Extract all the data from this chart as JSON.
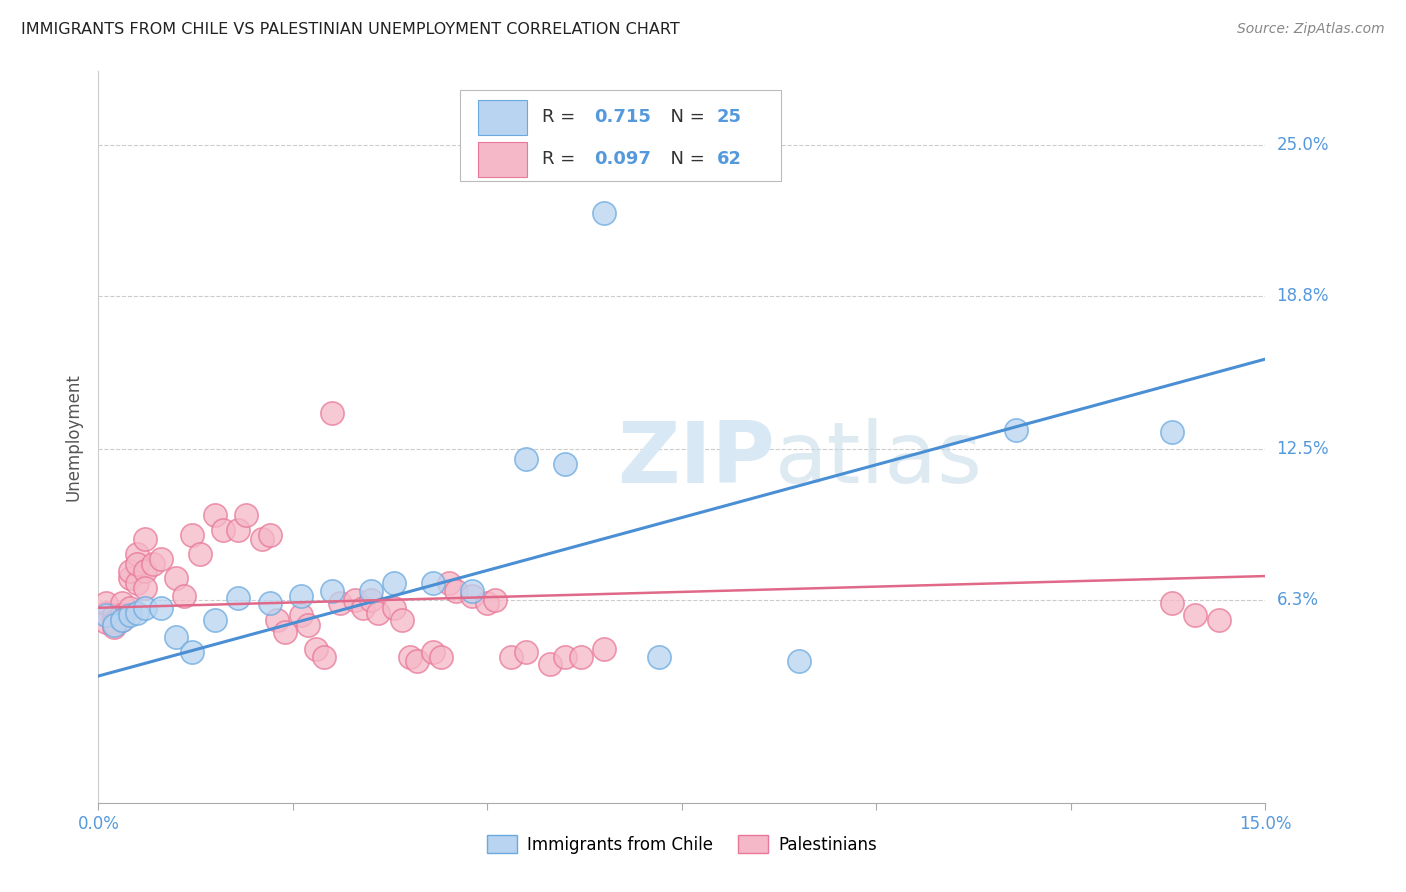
{
  "title": "IMMIGRANTS FROM CHILE VS PALESTINIAN UNEMPLOYMENT CORRELATION CHART",
  "source": "Source: ZipAtlas.com",
  "ylabel": "Unemployment",
  "xlim": [
    0.0,
    0.15
  ],
  "ylim": [
    -0.02,
    0.28
  ],
  "ytick_positions": [
    0.063,
    0.125,
    0.188,
    0.25
  ],
  "ytick_labels": [
    "6.3%",
    "12.5%",
    "18.8%",
    "25.0%"
  ],
  "xtick_positions": [
    0.0,
    0.025,
    0.05,
    0.075,
    0.1,
    0.125,
    0.15
  ],
  "chile_R": "0.715",
  "chile_N": "25",
  "palestinians_R": "0.097",
  "palestinians_N": "62",
  "chile_color": "#b8d4f0",
  "chile_edge_color": "#6aaae0",
  "chile_line_color": "#4a8fd4",
  "palestinians_color": "#f5b8c8",
  "palestinians_edge_color": "#e87898",
  "palestinians_line_color": "#e06888",
  "label_color": "#5599dd",
  "watermark_color": "#d8e8f5",
  "chile_points": [
    [
      0.001,
      0.057
    ],
    [
      0.002,
      0.053
    ],
    [
      0.003,
      0.055
    ],
    [
      0.004,
      0.057
    ],
    [
      0.005,
      0.058
    ],
    [
      0.006,
      0.06
    ],
    [
      0.008,
      0.06
    ],
    [
      0.01,
      0.048
    ],
    [
      0.012,
      0.042
    ],
    [
      0.015,
      0.055
    ],
    [
      0.018,
      0.064
    ],
    [
      0.022,
      0.062
    ],
    [
      0.026,
      0.065
    ],
    [
      0.03,
      0.067
    ],
    [
      0.035,
      0.067
    ],
    [
      0.038,
      0.07
    ],
    [
      0.043,
      0.07
    ],
    [
      0.048,
      0.067
    ],
    [
      0.055,
      0.121
    ],
    [
      0.06,
      0.119
    ],
    [
      0.065,
      0.222
    ],
    [
      0.072,
      0.04
    ],
    [
      0.09,
      0.038
    ],
    [
      0.118,
      0.133
    ],
    [
      0.138,
      0.132
    ]
  ],
  "chile_line": [
    [
      0.0,
      0.032
    ],
    [
      0.15,
      0.162
    ]
  ],
  "palestinians_points": [
    [
      0.001,
      0.058
    ],
    [
      0.001,
      0.054
    ],
    [
      0.001,
      0.062
    ],
    [
      0.002,
      0.057
    ],
    [
      0.002,
      0.054
    ],
    [
      0.002,
      0.052
    ],
    [
      0.003,
      0.062
    ],
    [
      0.003,
      0.057
    ],
    [
      0.003,
      0.055
    ],
    [
      0.004,
      0.06
    ],
    [
      0.004,
      0.072
    ],
    [
      0.004,
      0.075
    ],
    [
      0.005,
      0.082
    ],
    [
      0.005,
      0.07
    ],
    [
      0.005,
      0.078
    ],
    [
      0.006,
      0.088
    ],
    [
      0.006,
      0.075
    ],
    [
      0.006,
      0.068
    ],
    [
      0.007,
      0.078
    ],
    [
      0.008,
      0.08
    ],
    [
      0.01,
      0.072
    ],
    [
      0.011,
      0.065
    ],
    [
      0.012,
      0.09
    ],
    [
      0.013,
      0.082
    ],
    [
      0.015,
      0.098
    ],
    [
      0.016,
      0.092
    ],
    [
      0.018,
      0.092
    ],
    [
      0.019,
      0.098
    ],
    [
      0.021,
      0.088
    ],
    [
      0.022,
      0.09
    ],
    [
      0.023,
      0.055
    ],
    [
      0.024,
      0.05
    ],
    [
      0.026,
      0.057
    ],
    [
      0.027,
      0.053
    ],
    [
      0.028,
      0.043
    ],
    [
      0.029,
      0.04
    ],
    [
      0.03,
      0.14
    ],
    [
      0.031,
      0.062
    ],
    [
      0.033,
      0.063
    ],
    [
      0.034,
      0.06
    ],
    [
      0.035,
      0.063
    ],
    [
      0.036,
      0.058
    ],
    [
      0.038,
      0.06
    ],
    [
      0.039,
      0.055
    ],
    [
      0.04,
      0.04
    ],
    [
      0.041,
      0.038
    ],
    [
      0.043,
      0.042
    ],
    [
      0.044,
      0.04
    ],
    [
      0.045,
      0.07
    ],
    [
      0.046,
      0.067
    ],
    [
      0.048,
      0.065
    ],
    [
      0.05,
      0.062
    ],
    [
      0.051,
      0.063
    ],
    [
      0.053,
      0.04
    ],
    [
      0.055,
      0.042
    ],
    [
      0.058,
      0.037
    ],
    [
      0.06,
      0.04
    ],
    [
      0.062,
      0.04
    ],
    [
      0.065,
      0.043
    ],
    [
      0.138,
      0.062
    ],
    [
      0.141,
      0.057
    ],
    [
      0.144,
      0.055
    ]
  ],
  "palestinians_line": [
    [
      0.0,
      0.06
    ],
    [
      0.15,
      0.073
    ]
  ],
  "background_color": "#ffffff",
  "grid_color": "#cccccc"
}
